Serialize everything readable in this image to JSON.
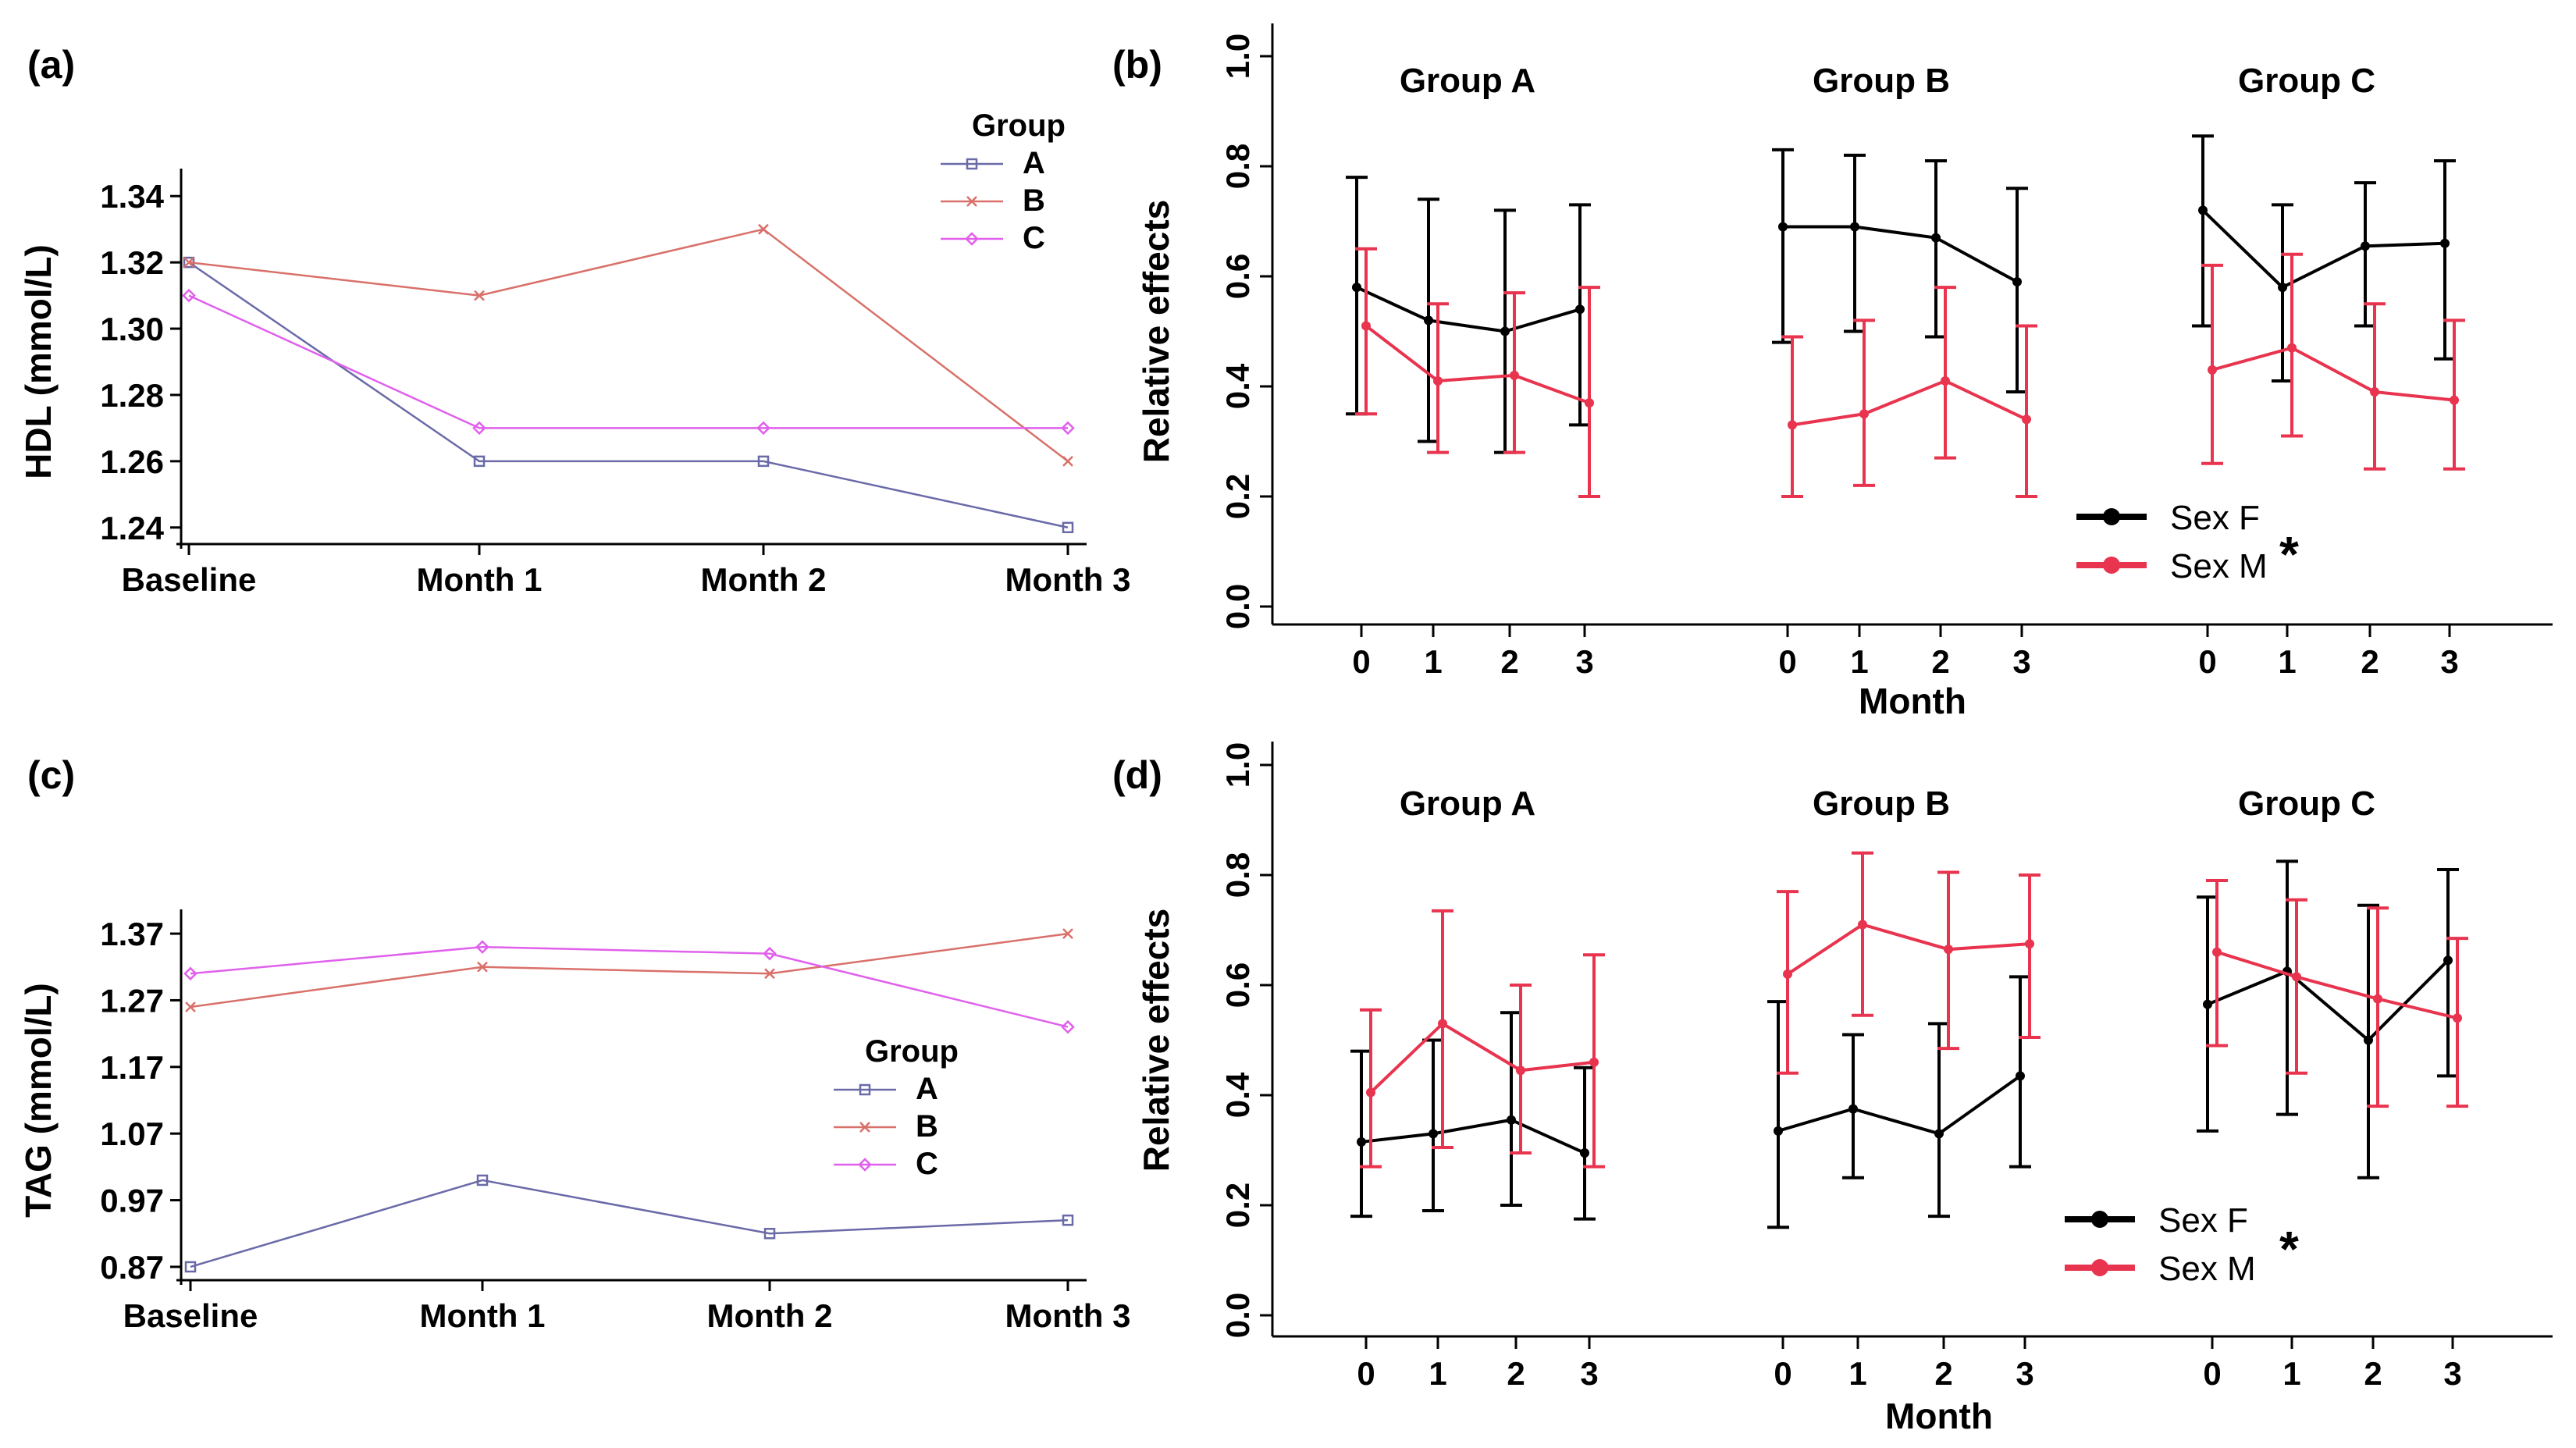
{
  "chart_data": [
    {
      "id": "a",
      "panel_label": "(a)",
      "type": "line",
      "ylabel": "HDL (mmol/L)",
      "categories": [
        "Baseline",
        "Month 1",
        "Month 2",
        "Month 3"
      ],
      "ylim": [
        1.235,
        1.345
      ],
      "yticks": [
        "1.24",
        "1.26",
        "1.28",
        "1.30",
        "1.32",
        "1.34"
      ],
      "legend": {
        "title": "Group",
        "position": "top-right"
      },
      "series": [
        {
          "name": "A",
          "color": "#6a6aa8",
          "marker": "square",
          "values": [
            1.32,
            1.26,
            1.26,
            1.24
          ]
        },
        {
          "name": "B",
          "color": "#d9706a",
          "marker": "x",
          "values": [
            1.32,
            1.31,
            1.33,
            1.26
          ]
        },
        {
          "name": "C",
          "color": "#e060ec",
          "marker": "diamond",
          "values": [
            1.31,
            1.27,
            1.27,
            1.27
          ]
        }
      ]
    },
    {
      "id": "b",
      "panel_label": "(b)",
      "type": "line",
      "ylabel": "Relative effects",
      "xlabel": "Month",
      "ylim": [
        0.0,
        1.0
      ],
      "yticks": [
        "0.0",
        "0.2",
        "0.4",
        "0.6",
        "0.8",
        "1.0"
      ],
      "x_ticks": [
        "0",
        "1",
        "2",
        "3"
      ],
      "groups": [
        "Group A",
        "Group B",
        "Group C"
      ],
      "legend": {
        "position": "bottom-right",
        "entries": [
          "Sex F",
          "Sex M"
        ],
        "annotation": "*"
      },
      "series": [
        {
          "name": "Sex F",
          "color": "#000000",
          "values": [
            [
              0.58,
              0.52,
              0.5,
              0.54
            ],
            [
              0.69,
              0.69,
              0.67,
              0.59
            ],
            [
              0.72,
              0.58,
              0.655,
              0.66
            ]
          ],
          "lower": [
            [
              0.35,
              0.3,
              0.28,
              0.33
            ],
            [
              0.48,
              0.5,
              0.49,
              0.39
            ],
            [
              0.51,
              0.41,
              0.51,
              0.45
            ]
          ],
          "upper": [
            [
              0.78,
              0.74,
              0.72,
              0.73
            ],
            [
              0.83,
              0.82,
              0.81,
              0.76
            ],
            [
              0.855,
              0.73,
              0.77,
              0.81
            ]
          ]
        },
        {
          "name": "Sex M",
          "color": "#e8344e",
          "values": [
            [
              0.51,
              0.41,
              0.42,
              0.37
            ],
            [
              0.33,
              0.35,
              0.41,
              0.34
            ],
            [
              0.43,
              0.47,
              0.39,
              0.375
            ]
          ],
          "lower": [
            [
              0.35,
              0.28,
              0.28,
              0.2
            ],
            [
              0.2,
              0.22,
              0.27,
              0.2
            ],
            [
              0.26,
              0.31,
              0.25,
              0.25
            ]
          ],
          "upper": [
            [
              0.65,
              0.55,
              0.57,
              0.58
            ],
            [
              0.49,
              0.52,
              0.58,
              0.51
            ],
            [
              0.62,
              0.64,
              0.55,
              0.52
            ]
          ]
        }
      ]
    },
    {
      "id": "c",
      "panel_label": "(c)",
      "type": "line",
      "ylabel": "TAG (mmol/L)",
      "categories": [
        "Baseline",
        "Month 1",
        "Month 2",
        "Month 3"
      ],
      "ylim": [
        0.85,
        1.39
      ],
      "yticks": [
        "0.87",
        "0.97",
        "1.07",
        "1.17",
        "1.27",
        "1.37"
      ],
      "legend": {
        "title": "Group",
        "position": "center-right"
      },
      "series": [
        {
          "name": "A",
          "color": "#6a6aa8",
          "marker": "square",
          "values": [
            0.87,
            1.0,
            0.92,
            0.94
          ]
        },
        {
          "name": "B",
          "color": "#d9706a",
          "marker": "x",
          "values": [
            1.26,
            1.32,
            1.31,
            1.37
          ]
        },
        {
          "name": "C",
          "color": "#e060ec",
          "marker": "diamond",
          "values": [
            1.31,
            1.35,
            1.34,
            1.23
          ]
        }
      ]
    },
    {
      "id": "d",
      "panel_label": "(d)",
      "type": "line",
      "ylabel": "Relative effects",
      "xlabel": "Month",
      "ylim": [
        0.0,
        1.0
      ],
      "yticks": [
        "0.0",
        "0.2",
        "0.4",
        "0.6",
        "0.8",
        "1.0"
      ],
      "x_ticks": [
        "0",
        "1",
        "2",
        "3"
      ],
      "groups": [
        "Group A",
        "Group B",
        "Group C"
      ],
      "legend": {
        "position": "bottom-right",
        "entries": [
          "Sex F",
          "Sex M"
        ],
        "annotation": "*"
      },
      "series": [
        {
          "name": "Sex F",
          "color": "#000000",
          "values": [
            [
              0.315,
              0.33,
              0.355,
              0.295
            ],
            [
              0.335,
              0.375,
              0.33,
              0.435
            ],
            [
              0.565,
              0.625,
              0.5,
              0.645
            ]
          ],
          "lower": [
            [
              0.18,
              0.19,
              0.2,
              0.175
            ],
            [
              0.16,
              0.25,
              0.18,
              0.27
            ],
            [
              0.335,
              0.365,
              0.25,
              0.435
            ]
          ],
          "upper": [
            [
              0.48,
              0.5,
              0.55,
              0.45
            ],
            [
              0.57,
              0.51,
              0.53,
              0.615
            ],
            [
              0.76,
              0.825,
              0.745,
              0.81
            ]
          ]
        },
        {
          "name": "Sex M",
          "color": "#e8344e",
          "values": [
            [
              0.405,
              0.53,
              0.445,
              0.46
            ],
            [
              0.62,
              0.71,
              0.665,
              0.675
            ],
            [
              0.66,
              0.615,
              0.575,
              0.54
            ]
          ],
          "lower": [
            [
              0.27,
              0.305,
              0.295,
              0.27
            ],
            [
              0.44,
              0.545,
              0.485,
              0.505
            ],
            [
              0.49,
              0.44,
              0.38,
              0.38
            ]
          ],
          "upper": [
            [
              0.555,
              0.735,
              0.6,
              0.655
            ],
            [
              0.77,
              0.84,
              0.805,
              0.8
            ],
            [
              0.79,
              0.755,
              0.74,
              0.685
            ]
          ]
        }
      ]
    }
  ]
}
